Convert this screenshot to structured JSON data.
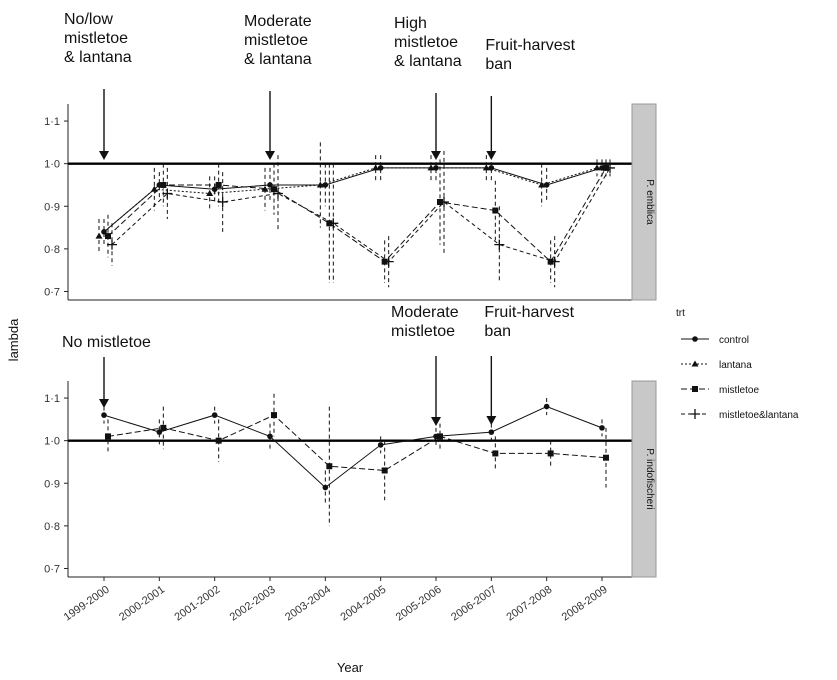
{
  "chart_data": {
    "type": "line",
    "xlabel": "Year",
    "ylabel": "lambda",
    "categories": [
      "1999-2000",
      "2000-2001",
      "2001-2002",
      "2002-2003",
      "2003-2004",
      "2004-2005",
      "2005-2006",
      "2006-2007",
      "2007-2008",
      "2008-2009"
    ],
    "yticks": [
      "0·7",
      "0·8",
      "0·9",
      "1·0",
      "1·1"
    ],
    "ylim": [
      0.68,
      1.14
    ],
    "reference_line": 1.0,
    "legend": {
      "title": "trt",
      "position": "right",
      "items": [
        "control",
        "lantana",
        "mistletoe",
        "mistletoe&lantana"
      ]
    },
    "panels": [
      {
        "strip": "P. emblica",
        "annotations": [
          {
            "text": "No/low\nmistletoe\n& lantana",
            "category": "1999-2000"
          },
          {
            "text": "Moderate\nmistletoe\n& lantana",
            "category": "2002-2003"
          },
          {
            "text": "High\nmistletoe\n& lantana",
            "category": "2005-2006"
          },
          {
            "text": "Fruit-harvest\nban",
            "category": "2006-2007"
          }
        ],
        "series": [
          {
            "name": "control",
            "values": [
              0.84,
              0.95,
              0.94,
              0.95,
              0.95,
              0.99,
              0.99,
              0.99,
              0.95,
              0.99
            ],
            "err": [
              0.03,
              0.03,
              0.03,
              0.04,
              0.05,
              0.03,
              0.03,
              0.03,
              0.04,
              0.02
            ]
          },
          {
            "name": "lantana",
            "values": [
              0.83,
              0.94,
              0.93,
              0.94,
              0.95,
              0.99,
              0.99,
              0.99,
              0.95,
              0.99
            ],
            "err": [
              0.04,
              0.05,
              0.04,
              0.05,
              0.1,
              0.03,
              0.03,
              0.03,
              0.05,
              0.02
            ]
          },
          {
            "name": "mistletoe",
            "values": [
              0.83,
              0.95,
              0.95,
              0.94,
              0.86,
              0.77,
              0.91,
              0.89,
              0.77,
              0.99
            ],
            "err": [
              0.05,
              0.05,
              0.05,
              0.06,
              0.14,
              0.05,
              0.1,
              0.07,
              0.05,
              0.02
            ]
          },
          {
            "name": "mistletoe&lantana",
            "values": [
              0.81,
              0.93,
              0.91,
              0.93,
              0.86,
              0.77,
              0.91,
              0.81,
              0.77,
              0.99
            ],
            "err": [
              0.05,
              0.06,
              0.07,
              0.09,
              0.14,
              0.06,
              0.12,
              0.09,
              0.06,
              0.02
            ]
          }
        ]
      },
      {
        "strip": "P. indofischeri",
        "annotations": [
          {
            "text": "No mistletoe",
            "category": "1999-2000"
          },
          {
            "text": "Moderate\nmistletoe",
            "category": "2005-2006"
          },
          {
            "text": "Fruit-harvest\nban",
            "category": "2006-2007"
          }
        ],
        "series": [
          {
            "name": "control",
            "values": [
              1.06,
              1.02,
              1.06,
              1.01,
              0.89,
              0.99,
              1.01,
              1.02,
              1.08,
              1.03
            ],
            "err": [
              0.02,
              0.03,
              0.02,
              0.03,
              0.04,
              0.02,
              0.02,
              0.02,
              0.02,
              0.02
            ]
          },
          {
            "name": "mistletoe",
            "values": [
              1.01,
              1.03,
              1.0,
              1.06,
              0.94,
              0.93,
              1.01,
              0.97,
              0.97,
              0.96
            ],
            "err": [
              0.04,
              0.05,
              0.05,
              0.05,
              0.14,
              0.07,
              0.03,
              0.04,
              0.03,
              0.07
            ]
          }
        ]
      }
    ]
  }
}
